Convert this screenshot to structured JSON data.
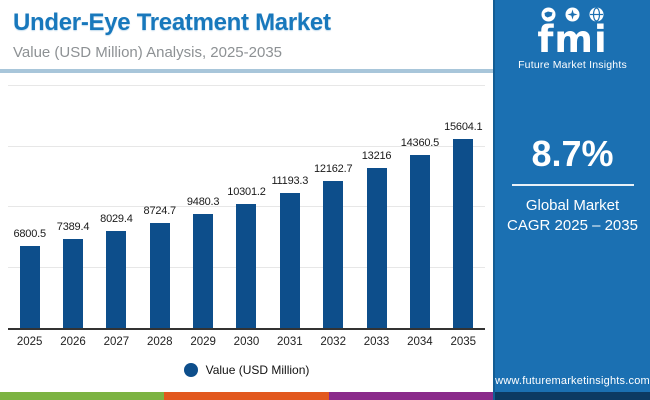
{
  "header": {
    "title": "Under-Eye Treatment Market",
    "subtitle": "Value (USD Million) Analysis, 2025-2035",
    "title_color": "#1878bc"
  },
  "sidebar": {
    "logo": {
      "text": "fmi",
      "tagline": "Future Market Insights",
      "icons": [
        "map-icon",
        "compass-icon",
        "globe-icon"
      ]
    },
    "cagr_value": "8.7%",
    "cagr_label_line1": "Global Market",
    "cagr_label_line2": "CAGR 2025 – 2035",
    "website": "www.futuremarketinsights.com",
    "background_color": "#1b70b2",
    "bottom_strip_color": "#0c3a62"
  },
  "chart_data": {
    "type": "bar",
    "categories": [
      "2025",
      "2026",
      "2027",
      "2028",
      "2029",
      "2030",
      "2031",
      "2032",
      "2033",
      "2034",
      "2035"
    ],
    "values": [
      6800.5,
      7389.4,
      8029.4,
      8724.7,
      9480.3,
      10301.2,
      11193.3,
      12162.7,
      13216,
      14360.5,
      15604.1
    ],
    "value_labels": [
      "6800.5",
      "7389.4",
      "8029.4",
      "8724.7",
      "9480.3",
      "10301.2",
      "11193.3",
      "12162.7",
      "13216",
      "14360.5",
      "15604.1"
    ],
    "title": "Under-Eye Treatment Market",
    "xlabel": "",
    "ylabel": "Value (USD Million)",
    "ylim": [
      0,
      20000
    ],
    "gridline_step": 5000,
    "grid": true,
    "bar_color": "#0d4e8b",
    "legend_entries": [
      "Value (USD Million)"
    ],
    "legend_position": "bottom"
  },
  "footer": {
    "stripe_colors": [
      "#7cb342",
      "#e2581e",
      "#8a2a8a"
    ],
    "stripe_widths": [
      164,
      165,
      164
    ]
  }
}
